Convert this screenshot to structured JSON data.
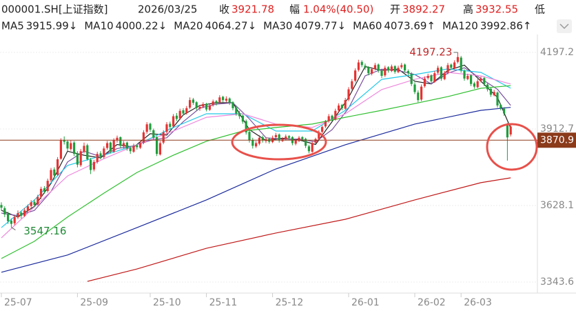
{
  "chart_data": {
    "type": "candlestick",
    "header": [
      "000001.SH[上证指数]",
      "2026/03/25",
      "收",
      "3921.78",
      "幅",
      "1.04%(40.50)",
      "开",
      "3892.27",
      "高",
      "3932.55",
      "低"
    ],
    "ylim": [
      3302.6,
      4263.9
    ],
    "yticks": [
      4197.2,
      3912.7,
      3628.1,
      3343.6
    ],
    "grid": true,
    "xticks": [
      {
        "value": 0,
        "label": "25-07"
      },
      {
        "value": 23,
        "label": "25-09"
      },
      {
        "value": 45,
        "label": "25-10"
      },
      {
        "value": 62,
        "label": "25-11"
      },
      {
        "value": 82,
        "label": "25-12"
      },
      {
        "value": 105,
        "label": "26-01"
      },
      {
        "value": 125,
        "label": "26-02"
      },
      {
        "value": 139,
        "label": "26-03"
      }
    ],
    "up_color": "#e63232",
    "down_color": "#1f9d3c",
    "price_line": 3870.9,
    "price_line_color": "#8b3a1a",
    "annotations": [
      {
        "text": "4197.23",
        "index": 138,
        "value": 4197.23,
        "color": "#c0282a"
      },
      {
        "text": "3547.16",
        "index": 3,
        "value": 3547.16,
        "color": "#1f8a35"
      }
    ],
    "ohlc": [
      [
        3630,
        3640,
        3610,
        3620
      ],
      [
        3618,
        3625,
        3585,
        3595
      ],
      [
        3598,
        3605,
        3560,
        3570
      ],
      [
        3572,
        3580,
        3547.16,
        3560
      ],
      [
        3562,
        3592,
        3555,
        3585
      ],
      [
        3584,
        3610,
        3578,
        3600
      ],
      [
        3602,
        3608,
        3580,
        3590
      ],
      [
        3590,
        3618,
        3585,
        3610
      ],
      [
        3608,
        3632,
        3600,
        3625
      ],
      [
        3626,
        3648,
        3618,
        3640
      ],
      [
        3642,
        3650,
        3622,
        3630
      ],
      [
        3632,
        3668,
        3628,
        3660
      ],
      [
        3660,
        3698,
        3652,
        3690
      ],
      [
        3692,
        3700,
        3672,
        3680
      ],
      [
        3682,
        3728,
        3676,
        3720
      ],
      [
        3722,
        3768,
        3715,
        3760
      ],
      [
        3762,
        3770,
        3730,
        3740
      ],
      [
        3742,
        3808,
        3738,
        3800
      ],
      [
        3802,
        3878,
        3798,
        3870
      ],
      [
        3872,
        3885,
        3855,
        3865
      ],
      [
        3866,
        3872,
        3830,
        3840
      ],
      [
        3838,
        3870,
        3832,
        3860
      ],
      [
        3862,
        3868,
        3812,
        3820
      ],
      [
        3822,
        3830,
        3770,
        3780
      ],
      [
        3778,
        3838,
        3772,
        3830
      ],
      [
        3828,
        3862,
        3822,
        3850
      ],
      [
        3852,
        3858,
        3795,
        3800
      ],
      [
        3798,
        3805,
        3745,
        3760
      ],
      [
        3762,
        3798,
        3755,
        3790
      ],
      [
        3790,
        3828,
        3784,
        3820
      ],
      [
        3822,
        3830,
        3800,
        3810
      ],
      [
        3808,
        3848,
        3802,
        3840
      ],
      [
        3842,
        3868,
        3835,
        3860
      ],
      [
        3862,
        3866,
        3822,
        3830
      ],
      [
        3828,
        3878,
        3824,
        3870
      ],
      [
        3872,
        3888,
        3862,
        3880
      ],
      [
        3882,
        3885,
        3842,
        3850
      ],
      [
        3848,
        3868,
        3840,
        3860
      ],
      [
        3862,
        3866,
        3832,
        3840
      ],
      [
        3842,
        3848,
        3820,
        3830
      ],
      [
        3828,
        3858,
        3824,
        3850
      ],
      [
        3852,
        3856,
        3836,
        3845
      ],
      [
        3843,
        3868,
        3838,
        3860
      ],
      [
        3862,
        3908,
        3856,
        3900
      ],
      [
        3902,
        3938,
        3895,
        3930
      ],
      [
        3932,
        3936,
        3902,
        3910
      ],
      [
        3908,
        3914,
        3872,
        3880
      ],
      [
        3882,
        3886,
        3812,
        3820
      ],
      [
        3818,
        3868,
        3814,
        3860
      ],
      [
        3862,
        3908,
        3856,
        3900
      ],
      [
        3902,
        3938,
        3896,
        3930
      ],
      [
        3932,
        3940,
        3912,
        3920
      ],
      [
        3922,
        3968,
        3916,
        3960
      ],
      [
        3962,
        3972,
        3942,
        3950
      ],
      [
        3952,
        3988,
        3946,
        3980
      ],
      [
        3982,
        3990,
        3962,
        3970
      ],
      [
        3972,
        3998,
        3966,
        3990
      ],
      [
        3992,
        4030,
        3986,
        4020
      ],
      [
        4022,
        4028,
        4002,
        4010
      ],
      [
        4012,
        4016,
        3982,
        3990
      ],
      [
        3988,
        4002,
        3980,
        3995
      ],
      [
        3996,
        4012,
        3990,
        4005
      ],
      [
        4006,
        4010,
        3978,
        3985
      ],
      [
        3984,
        4006,
        3980,
        4000
      ],
      [
        4002,
        4022,
        3996,
        4015
      ],
      [
        4016,
        4020,
        4000,
        4010
      ],
      [
        4012,
        4038,
        4006,
        4030
      ],
      [
        4032,
        4036,
        4012,
        4020
      ],
      [
        4018,
        4034,
        4012,
        4025
      ],
      [
        4026,
        4030,
        4002,
        4010
      ],
      [
        4012,
        4016,
        3982,
        3990
      ],
      [
        3992,
        3998,
        3962,
        3970
      ],
      [
        3972,
        3980,
        3950,
        3960
      ],
      [
        3962,
        3966,
        3932,
        3940
      ],
      [
        3942,
        3948,
        3892,
        3900
      ],
      [
        3902,
        3908,
        3862,
        3870
      ],
      [
        3872,
        3880,
        3840,
        3850
      ],
      [
        3848,
        3868,
        3842,
        3860
      ],
      [
        3858,
        3890,
        3852,
        3880
      ],
      [
        3882,
        3888,
        3862,
        3870
      ],
      [
        3868,
        3882,
        3860,
        3875
      ],
      [
        3876,
        3880,
        3858,
        3865
      ],
      [
        3864,
        3888,
        3860,
        3880
      ],
      [
        3882,
        3898,
        3876,
        3890
      ],
      [
        3892,
        3896,
        3862,
        3870
      ],
      [
        3868,
        3882,
        3864,
        3875
      ],
      [
        3874,
        3892,
        3870,
        3885
      ],
      [
        3886,
        3890,
        3872,
        3880
      ],
      [
        3882,
        3886,
        3852,
        3860
      ],
      [
        3858,
        3876,
        3852,
        3870
      ],
      [
        3868,
        3886,
        3864,
        3880
      ],
      [
        3882,
        3886,
        3868,
        3875
      ],
      [
        3876,
        3880,
        3842,
        3850
      ],
      [
        3848,
        3854,
        3822,
        3830
      ],
      [
        3828,
        3866,
        3824,
        3860
      ],
      [
        3862,
        3880,
        3856,
        3875
      ],
      [
        3876,
        3908,
        3872,
        3900
      ],
      [
        3902,
        3926,
        3896,
        3920
      ],
      [
        3922,
        3946,
        3916,
        3940
      ],
      [
        3942,
        3968,
        3936,
        3960
      ],
      [
        3962,
        3966,
        3942,
        3950
      ],
      [
        3948,
        3988,
        3944,
        3980
      ],
      [
        3982,
        4008,
        3976,
        4000
      ],
      [
        4002,
        4006,
        3982,
        3990
      ],
      [
        3988,
        4028,
        3984,
        4020
      ],
      [
        4022,
        4068,
        4016,
        4060
      ],
      [
        4062,
        4098,
        4056,
        4090
      ],
      [
        4092,
        4138,
        4086,
        4130
      ],
      [
        4132,
        4170,
        4126,
        4160
      ],
      [
        4162,
        4168,
        4142,
        4150
      ],
      [
        4148,
        4156,
        4132,
        4140
      ],
      [
        4142,
        4146,
        4112,
        4120
      ],
      [
        4118,
        4142,
        4112,
        4135
      ],
      [
        4136,
        4158,
        4130,
        4150
      ],
      [
        4152,
        4156,
        4122,
        4130
      ],
      [
        4128,
        4134,
        4102,
        4110
      ],
      [
        4112,
        4148,
        4106,
        4140
      ],
      [
        4142,
        4146,
        4122,
        4130
      ],
      [
        4128,
        4152,
        4124,
        4145
      ],
      [
        4146,
        4150,
        4118,
        4125
      ],
      [
        4124,
        4148,
        4120,
        4140
      ],
      [
        4142,
        4158,
        4136,
        4150
      ],
      [
        4152,
        4156,
        4122,
        4130
      ],
      [
        4128,
        4134,
        4112,
        4120
      ],
      [
        4118,
        4124,
        4072,
        4080
      ],
      [
        4078,
        4086,
        4042,
        4050
      ],
      [
        4048,
        4056,
        4012,
        4020
      ],
      [
        4022,
        4078,
        4016,
        4070
      ],
      [
        4072,
        4108,
        4066,
        4100
      ],
      [
        4102,
        4118,
        4096,
        4110
      ],
      [
        4112,
        4116,
        4082,
        4090
      ],
      [
        4088,
        4128,
        4084,
        4120
      ],
      [
        4122,
        4148,
        4116,
        4140
      ],
      [
        4142,
        4146,
        4092,
        4100
      ],
      [
        4098,
        4128,
        4094,
        4120
      ],
      [
        4122,
        4158,
        4116,
        4150
      ],
      [
        4152,
        4156,
        4132,
        4140
      ],
      [
        4138,
        4168,
        4134,
        4160
      ],
      [
        4162,
        4197.23,
        4156,
        4180
      ],
      [
        4178,
        4184,
        4122,
        4130
      ],
      [
        4128,
        4134,
        4092,
        4100
      ],
      [
        4098,
        4118,
        4094,
        4110
      ],
      [
        4112,
        4116,
        4072,
        4080
      ],
      [
        4082,
        4088,
        4062,
        4070
      ],
      [
        4068,
        4098,
        4064,
        4090
      ],
      [
        4092,
        4108,
        4086,
        4100
      ],
      [
        4102,
        4106,
        4072,
        4080
      ],
      [
        4078,
        4084,
        4052,
        4060
      ],
      [
        4062,
        4066,
        4032,
        4040
      ],
      [
        4038,
        4058,
        4034,
        4050
      ],
      [
        4048,
        4052,
        3992,
        4000
      ],
      [
        4002,
        4006,
        3982,
        3990
      ],
      [
        3988,
        3994,
        3962,
        3970
      ],
      [
        3930,
        3935,
        3795,
        3881.28
      ],
      [
        3892.27,
        3932.55,
        3885,
        3921.78
      ]
    ],
    "series": [
      {
        "name": "MA5",
        "color": "#222222",
        "label": "3915.99↓",
        "label_color": "#e02020",
        "x": [
          0,
          5,
          10,
          15,
          20,
          25,
          30,
          35,
          40,
          45,
          50,
          55,
          60,
          65,
          70,
          75,
          80,
          85,
          90,
          95,
          100,
          105,
          110,
          115,
          120,
          125,
          130,
          135,
          140,
          145,
          150,
          154
        ],
        "values": [
          3610,
          3585,
          3625,
          3710,
          3830,
          3815,
          3805,
          3855,
          3845,
          3895,
          3890,
          3965,
          4000,
          4010,
          4010,
          3910,
          3870,
          3878,
          3872,
          3855,
          3940,
          4030,
          4145,
          4130,
          4135,
          4090,
          4080,
          4130,
          4150,
          4090,
          4030,
          3915.99
        ]
      },
      {
        "name": "MA10",
        "color": "#7a4fa0",
        "label": "4000.22↓",
        "label_color": "#3d6fb8",
        "x": [
          0,
          5,
          10,
          15,
          20,
          25,
          30,
          35,
          40,
          45,
          50,
          55,
          60,
          65,
          70,
          75,
          80,
          85,
          90,
          95,
          100,
          105,
          110,
          115,
          120,
          125,
          130,
          135,
          140,
          145,
          150,
          154
        ],
        "values": [
          3600,
          3590,
          3610,
          3680,
          3790,
          3830,
          3810,
          3840,
          3850,
          3870,
          3880,
          3940,
          3990,
          4005,
          4010,
          3950,
          3880,
          3875,
          3875,
          3865,
          3910,
          3990,
          4110,
          4135,
          4130,
          4115,
          4080,
          4120,
          4140,
          4100,
          4060,
          4000.22
        ]
      },
      {
        "name": "MA20",
        "color": "#22c8e8",
        "label": "4064.27↓",
        "label_color": "#22c8e8",
        "x": [
          0,
          10,
          20,
          31,
          41,
          52,
          62,
          73,
          83,
          94,
          104,
          115,
          125,
          135,
          145,
          154
        ],
        "values": [
          3546,
          3649,
          3777,
          3815,
          3854,
          3918,
          3969,
          3969,
          3905,
          3905,
          3982,
          4097,
          4115,
          4136,
          4123,
          4064.27
        ]
      },
      {
        "name": "MA30",
        "color": "#ee88dd",
        "label": "4079.77↓",
        "label_color": "#ee88dd",
        "x": [
          0,
          10,
          20,
          31,
          41,
          52,
          62,
          73,
          83,
          94,
          104,
          115,
          125,
          135,
          145,
          154
        ],
        "values": [
          3508,
          3623,
          3738,
          3802,
          3854,
          3905,
          3956,
          3969,
          3931,
          3918,
          3969,
          4059,
          4097,
          4123,
          4110,
          4079.77
        ]
      },
      {
        "name": "MA60",
        "color": "#2fbf2f",
        "label": "4073.69↑",
        "label_color": "#2fbf2f",
        "x": [
          0,
          10,
          20,
          31,
          41,
          52,
          62,
          73,
          83,
          94,
          104,
          115,
          125,
          135,
          145,
          154
        ],
        "values": [
          3431,
          3495,
          3585,
          3674,
          3751,
          3815,
          3867,
          3905,
          3918,
          3931,
          3956,
          3982,
          4007,
          4033,
          4064,
          4073.69
        ]
      },
      {
        "name": "MA120",
        "color": "#1a2a9c",
        "label": "3992.86↑",
        "label_color": "#1a2a9c",
        "x": [
          0,
          20,
          41,
          62,
          83,
          104,
          125,
          145,
          154
        ],
        "values": [
          3380,
          3444,
          3546,
          3649,
          3764,
          3854,
          3931,
          3982,
          3992.86
        ]
      },
      {
        "color": "#c01818",
        "x": [
          26,
          41,
          62,
          83,
          104,
          125,
          145,
          154
        ],
        "values": [
          3346,
          3392,
          3469,
          3526,
          3577,
          3649,
          3713,
          3731
        ]
      }
    ]
  }
}
